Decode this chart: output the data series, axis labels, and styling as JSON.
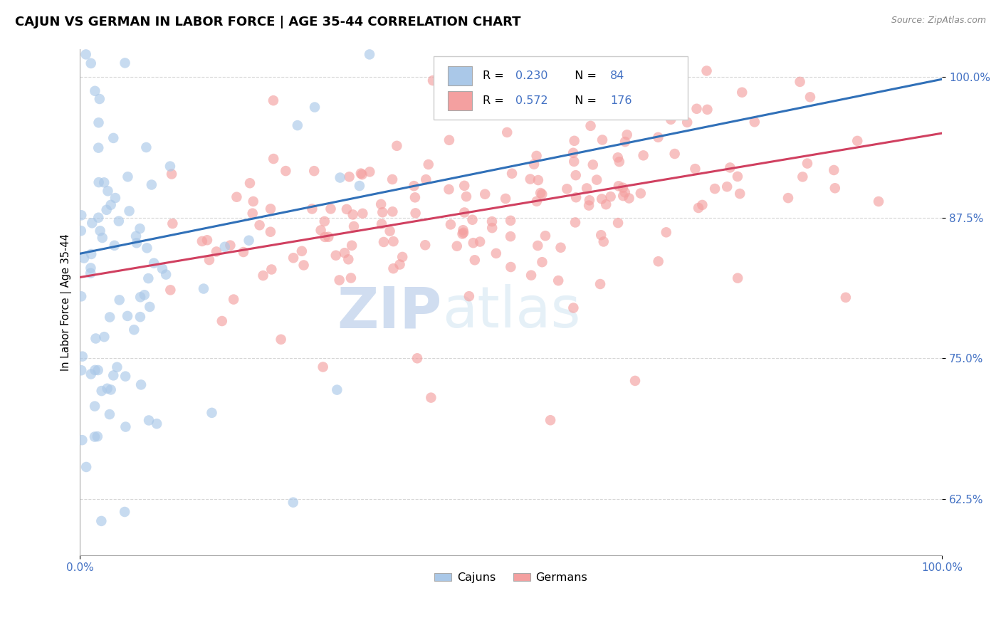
{
  "title": "CAJUN VS GERMAN IN LABOR FORCE | AGE 35-44 CORRELATION CHART",
  "source_text": "Source: ZipAtlas.com",
  "ylabel": "In Labor Force | Age 35-44",
  "xlim": [
    0.0,
    1.0
  ],
  "ylim": [
    0.575,
    1.025
  ],
  "x_ticks": [
    0.0,
    1.0
  ],
  "x_tick_labels": [
    "0.0%",
    "100.0%"
  ],
  "y_ticks": [
    0.625,
    0.75,
    0.875,
    1.0
  ],
  "y_tick_labels": [
    "62.5%",
    "75.0%",
    "87.5%",
    "100.0%"
  ],
  "cajun_R": 0.23,
  "cajun_N": 84,
  "german_R": 0.572,
  "german_N": 176,
  "cajun_color": "#aac8e8",
  "german_color": "#f4a0a0",
  "cajun_line_color": "#3070b8",
  "german_line_color": "#d04060",
  "background_color": "#ffffff",
  "watermark_ZIP": "ZIP",
  "watermark_atlas": "atlas",
  "title_fontsize": 13,
  "tick_label_color": "#4472c4",
  "grid_color": "#cccccc",
  "legend_text_color": "#4472c4",
  "cajun_line_intercept": 0.843,
  "cajun_line_slope": 0.155,
  "german_line_intercept": 0.822,
  "german_line_slope": 0.128
}
